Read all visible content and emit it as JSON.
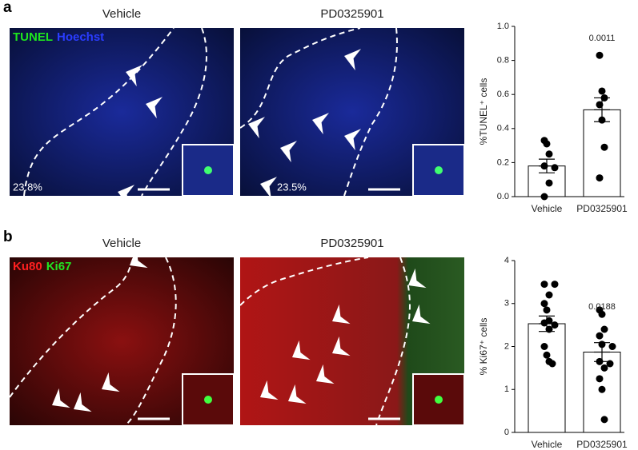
{
  "panels": [
    {
      "label": "a",
      "stains": [
        {
          "text": "TUNEL",
          "color": "#1ee61e"
        },
        {
          "text": "Hoechst",
          "color": "#2a3cff"
        }
      ],
      "images": [
        {
          "title": "Vehicle",
          "percent": "23.8%"
        },
        {
          "title": "PD0325901",
          "percent": "23.5%"
        }
      ]
    },
    {
      "label": "b",
      "stains": [
        {
          "text": "Ku80",
          "color": "#ff2020"
        },
        {
          "text": "Ki67",
          "color": "#22e622"
        }
      ],
      "images": [
        {
          "title": "Vehicle"
        },
        {
          "title": "PD0325901"
        }
      ]
    }
  ],
  "chart_data": [
    {
      "type": "bar",
      "ylabel": "%TUNEL⁺ cells",
      "categories": [
        "Vehicle",
        "PD0325901"
      ],
      "values": [
        0.18,
        0.51
      ],
      "errors": [
        0.04,
        0.07
      ],
      "points": [
        [
          0.33,
          0.31,
          0.25,
          0.18,
          0.17,
          0.08,
          0.0
        ],
        [
          0.83,
          0.62,
          0.58,
          0.54,
          0.45,
          0.29,
          0.11
        ]
      ],
      "annotations": [
        {
          "category": 1,
          "text": "0.0011"
        }
      ],
      "ylim": [
        0,
        1
      ],
      "yticks": [
        {
          "value": 0,
          "label": "0.0"
        },
        0.2,
        0.4,
        0.6,
        0.8,
        {
          "value": 1,
          "label": "1.0"
        }
      ],
      "color": "#ffffff",
      "point_color": "#000000"
    },
    {
      "type": "bar",
      "ylabel": "% Ki67⁺ cells",
      "categories": [
        "Vehicle",
        "PD0325901"
      ],
      "values": [
        2.53,
        1.87
      ],
      "errors": [
        0.18,
        0.22
      ],
      "points": [
        [
          3.45,
          3.45,
          3.2,
          3.0,
          2.85,
          2.6,
          2.55,
          2.5,
          2.4,
          2.0,
          1.8,
          1.65,
          1.6
        ],
        [
          2.85,
          2.75,
          2.4,
          2.25,
          2.05,
          2.0,
          1.65,
          1.6,
          1.5,
          1.25,
          1.0,
          0.3
        ]
      ],
      "annotations": [
        {
          "category": 1,
          "text": "0.0188"
        }
      ],
      "ylim": [
        0,
        4
      ],
      "yticks": [
        0,
        1,
        2,
        3,
        4
      ],
      "color": "#ffffff",
      "point_color": "#000000"
    }
  ]
}
